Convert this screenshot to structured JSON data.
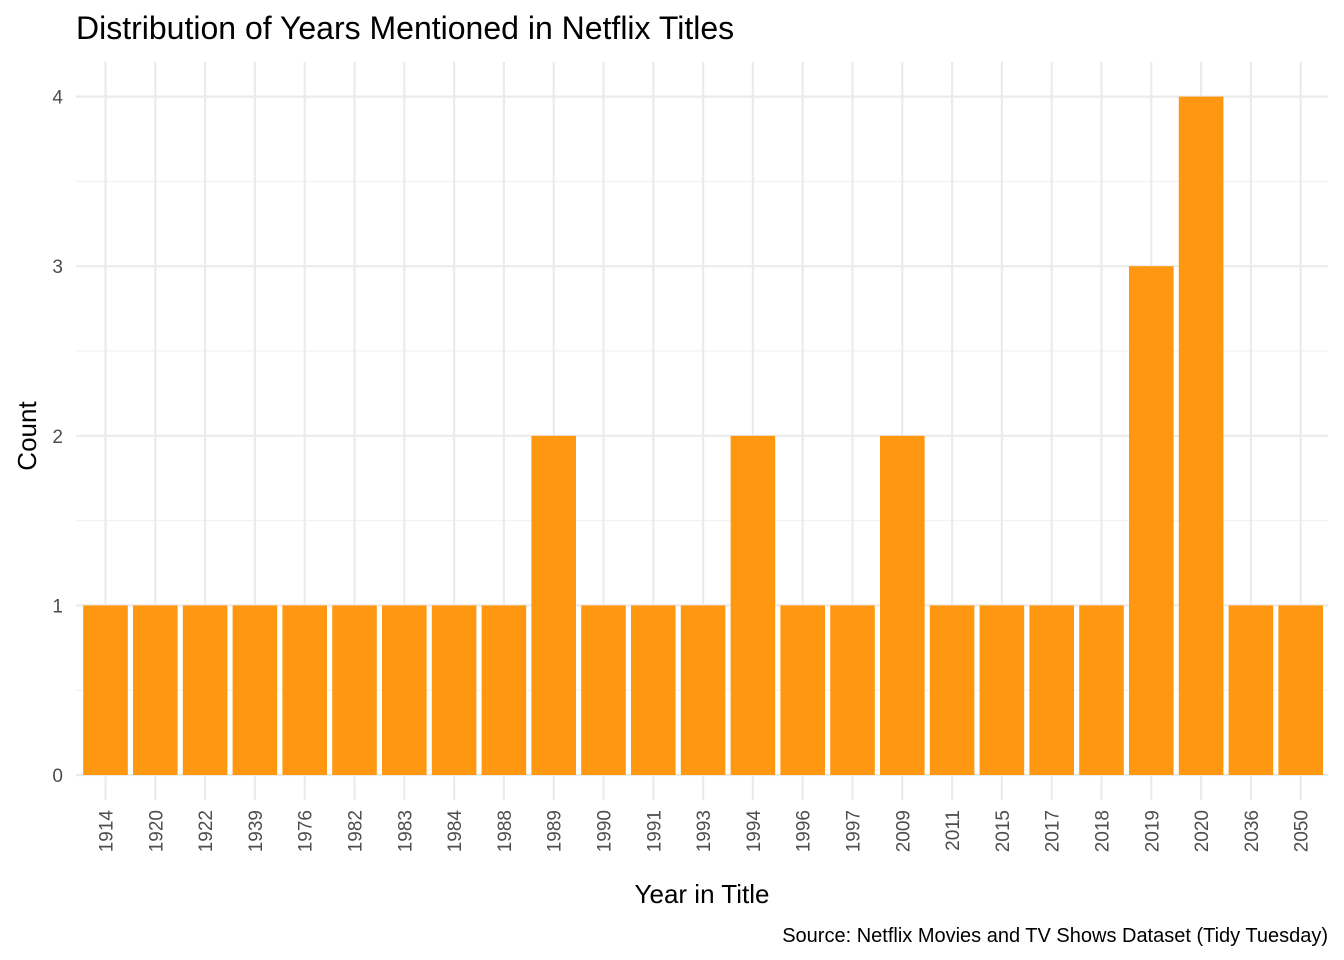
{
  "chart_data": {
    "type": "bar",
    "title": "Distribution of Years Mentioned in Netflix Titles",
    "xlabel": "Year in Title",
    "ylabel": "Count",
    "caption": "Source: Netflix Movies and TV Shows Dataset (Tidy Tuesday)",
    "categories": [
      "1914",
      "1920",
      "1922",
      "1939",
      "1976",
      "1982",
      "1983",
      "1984",
      "1988",
      "1989",
      "1990",
      "1991",
      "1993",
      "1994",
      "1996",
      "1997",
      "2009",
      "2011",
      "2015",
      "2017",
      "2018",
      "2019",
      "2020",
      "2036",
      "2050"
    ],
    "values": [
      1,
      1,
      1,
      1,
      1,
      1,
      1,
      1,
      1,
      2,
      1,
      1,
      1,
      2,
      1,
      1,
      2,
      1,
      1,
      1,
      1,
      3,
      4,
      1,
      1
    ],
    "ylim": [
      0,
      4
    ],
    "yticks": [
      0,
      1,
      2,
      3,
      4
    ],
    "grid": true,
    "legend": "none",
    "bar_color": "#FF9810"
  }
}
